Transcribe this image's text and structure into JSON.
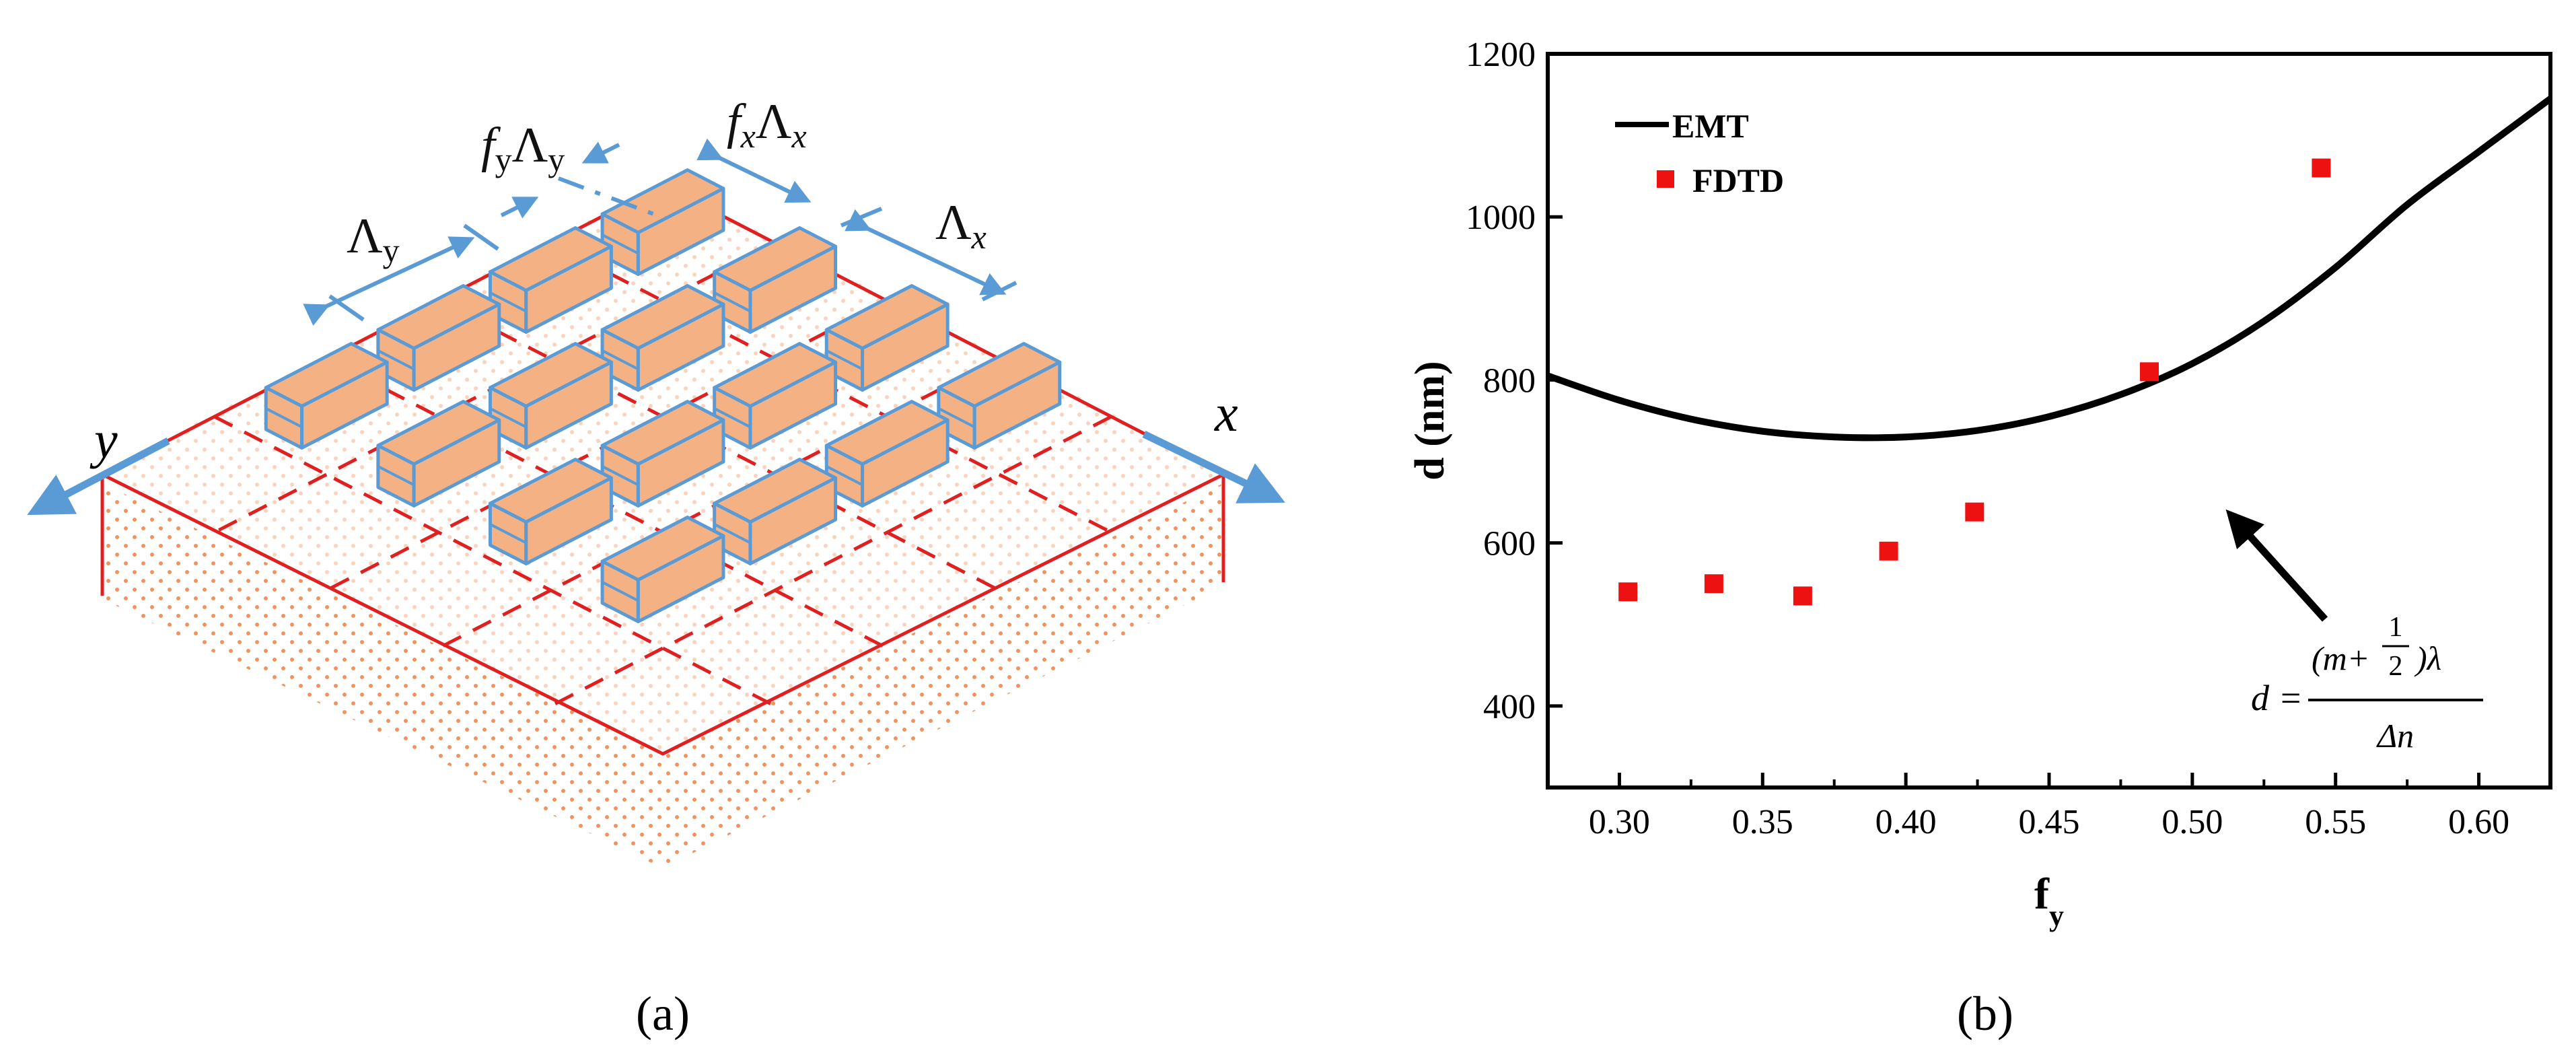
{
  "panel_a": {
    "caption": "(a)",
    "labels": {
      "y_axis": "y",
      "x_axis": "x",
      "lambda_y": "Λy",
      "lambda_x": "Λx",
      "fy_lambda_y": "fyΛy",
      "fx_lambda_x": "fxΛx"
    },
    "colors": {
      "block_fill": "#f4b183",
      "block_edge": "#5b9bd5",
      "grid": "#e02020",
      "arrow": "#5b9bd5",
      "dots": "#f08040"
    }
  },
  "panel_b": {
    "caption": "(b)",
    "legend": {
      "emt": "EMT",
      "fdtd": "FDTD"
    },
    "formula": {
      "lhs": "d =",
      "numerator_pre": "(m+",
      "half_num": "1",
      "half_den": "2",
      "numerator_post": ")λ",
      "denominator": "Δn"
    },
    "colors": {
      "emt": "#000000",
      "fdtd": "#ee1111"
    }
  },
  "chart_data": {
    "type": "scatter",
    "title": "",
    "xlabel": "f",
    "xlabel_sub": "y",
    "ylabel": "d (nm)",
    "xlim": [
      0.275,
      0.625
    ],
    "ylim": [
      300,
      1200
    ],
    "xticks": [
      0.3,
      0.35,
      0.4,
      0.45,
      0.5,
      0.55,
      0.6
    ],
    "xtick_labels": [
      "0.30",
      "0.35",
      "0.40",
      "0.45",
      "0.50",
      "0.55",
      "0.60"
    ],
    "yticks": [
      400,
      600,
      800,
      1000,
      1200
    ],
    "ytick_labels": [
      "400",
      "600",
      "800",
      "1000",
      "1200"
    ],
    "legend_position": "top-left",
    "series": [
      {
        "name": "EMT",
        "kind": "line",
        "x": [
          0.275,
          0.3,
          0.325,
          0.35,
          0.375,
          0.4,
          0.425,
          0.45,
          0.475,
          0.5,
          0.525,
          0.55,
          0.575,
          0.6,
          0.625
        ],
        "y": [
          805,
          775,
          752,
          737,
          730,
          730,
          738,
          755,
          782,
          820,
          872,
          938,
          1015,
          1080,
          1145
        ]
      },
      {
        "name": "FDTD",
        "kind": "scatter",
        "x": [
          0.303,
          0.333,
          0.364,
          0.394,
          0.424,
          0.485,
          0.545
        ],
        "y": [
          540,
          550,
          535,
          590,
          638,
          810,
          1060
        ]
      }
    ]
  }
}
